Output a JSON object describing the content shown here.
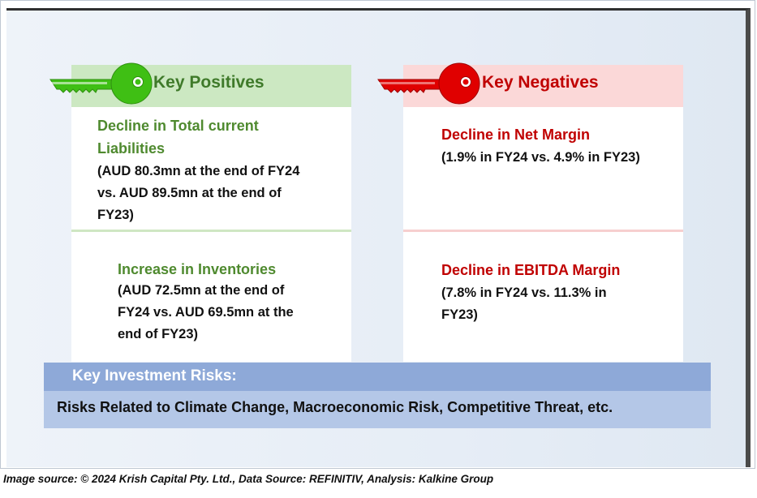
{
  "positives": {
    "header": "Key Positives",
    "items": [
      {
        "title": "Decline in Total current Liabilities",
        "title_lines": [
          "Decline in Total current",
          "Liabilities"
        ],
        "detail_lines": [
          "(AUD 80.3mn at the end of FY24",
          "vs. AUD 89.5mn at the end of",
          "FY23)"
        ]
      },
      {
        "title": "Increase in Inventories",
        "detail_lines": [
          "(AUD 72.5mn at the end of",
          "FY24 vs. AUD 69.5mn at the",
          "end of FY23)"
        ]
      }
    ]
  },
  "negatives": {
    "header": "Key Negatives",
    "items": [
      {
        "title": "Decline in Net Margin",
        "detail_lines": [
          "(1.9% in FY24 vs. 4.9% in FY23)"
        ]
      },
      {
        "title": "Decline in EBITDA Margin",
        "detail_lines": [
          "(7.8% in FY24 vs. 11.3% in",
          "FY23)"
        ]
      }
    ]
  },
  "risks": {
    "header": "Key Investment Risks:",
    "body": "Risks Related to Climate Change, Macroeconomic Risk, Competitive Threat, etc."
  },
  "caption": "Image source: © 2024 Krish Capital Pty. Ltd., Data Source: REFINITIV, Analysis: Kalkine Group",
  "colors": {
    "positive_accent": "#4f8a2f",
    "negative_accent": "#c00000",
    "key_green": "#3fbf14",
    "key_red": "#e00000",
    "risk_header": "#8ea9d8",
    "risk_body": "#b4c7e7"
  },
  "icons": [
    "green-key-icon",
    "red-key-icon"
  ]
}
